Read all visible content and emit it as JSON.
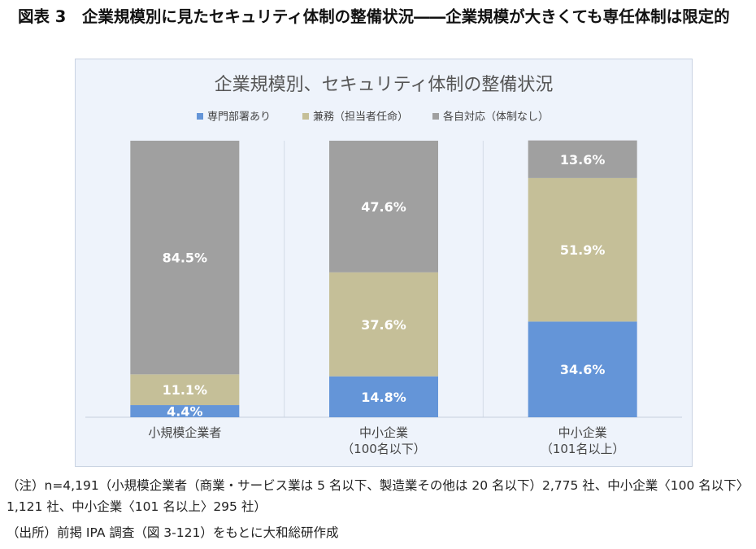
{
  "figure": {
    "title": "図表 3　企業規模別に見たセキュリティ体制の整備状況――企業規模が大きくても専任体制は限定的",
    "note": "（注）n=4,191（小規模企業者（商業・サービス業は 5 名以下、製造業その他は 20 名以下）2,775 社、中小企業〈100 名以下〉1,121 社、中小企業〈101 名以上〉295 社）",
    "source": "（出所）前掲 IPA 調査（図 3-121）をもとに大和総研作成"
  },
  "chart_data": {
    "type": "bar",
    "stacked": true,
    "percent": true,
    "title": "企業規模別、セキュリティ体制の整備状況",
    "categories": [
      [
        "小規模企業者"
      ],
      [
        "中小企業",
        "（100名以下）"
      ],
      [
        "中小企業",
        "（101名以上）"
      ]
    ],
    "series": [
      {
        "name": "専門部署あり",
        "color": "#6495d8",
        "values": [
          4.4,
          14.8,
          34.6
        ],
        "labels": [
          "4.4%",
          "14.8%",
          "34.6%"
        ]
      },
      {
        "name": "兼務（担当者任命）",
        "color": "#c5bf98",
        "values": [
          11.1,
          37.6,
          51.9
        ],
        "labels": [
          "11.1%",
          "37.6%",
          "51.9%"
        ]
      },
      {
        "name": "各自対応（体制なし）",
        "color": "#a0a0a0",
        "values": [
          84.5,
          47.6,
          13.6
        ],
        "labels": [
          "84.5%",
          "47.6%",
          "13.6%"
        ]
      }
    ],
    "ylim": [
      0,
      100
    ],
    "legend_position": "top",
    "grid": false
  }
}
